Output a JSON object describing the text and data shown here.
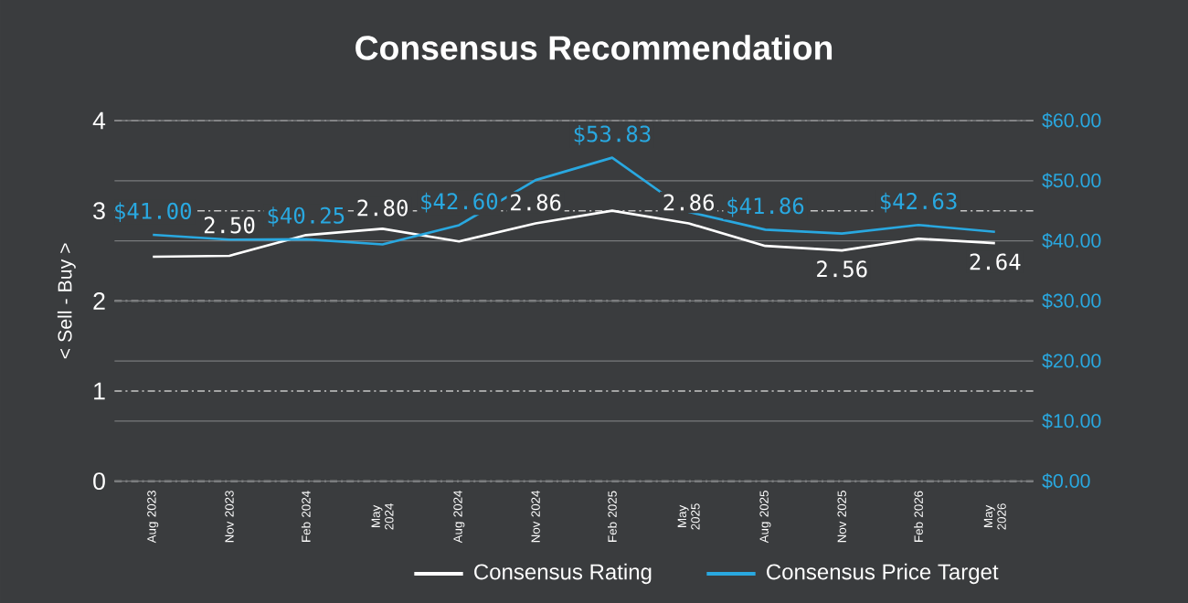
{
  "chart_data": {
    "type": "line",
    "title": "Consensus Recommendation",
    "ylabel": "< Sell - Buy >",
    "categories": [
      "Aug 2023",
      "Nov 2023",
      "Feb 2024",
      "May 2024",
      "Aug 2024",
      "Nov 2024",
      "Feb 2025",
      "May 2025",
      "Aug 2025",
      "Nov 2025",
      "Feb 2026",
      "May 2026"
    ],
    "series": [
      {
        "name": "Consensus Rating",
        "color": "#ffffff",
        "values": [
          2.49,
          2.5,
          2.73,
          2.8,
          2.66,
          2.86,
          3.0,
          2.86,
          2.61,
          2.56,
          2.69,
          2.64
        ],
        "value_labels": [
          null,
          "2.50",
          null,
          "2.80",
          null,
          "2.86",
          null,
          "2.86",
          null,
          "2.56",
          null,
          "2.64"
        ]
      },
      {
        "name": "Consensus Price Target",
        "color": "#29a8e0",
        "axis": "y2",
        "values": [
          41.0,
          40.2,
          40.25,
          39.4,
          42.6,
          50.1,
          53.83,
          44.8,
          41.86,
          41.2,
          42.63,
          41.5
        ],
        "value_labels": [
          "$41.00",
          null,
          "$40.25",
          null,
          "$42.60",
          null,
          "$53.83",
          null,
          "$41.86",
          null,
          "$42.63",
          null
        ]
      }
    ],
    "ylim": [
      0,
      4
    ],
    "yticks": [
      0,
      1,
      2,
      3,
      4
    ],
    "y2lim": [
      0,
      60
    ],
    "y2ticks": [
      {
        "value": 0,
        "label": "$0.00"
      },
      {
        "value": 10,
        "label": "$10.00"
      },
      {
        "value": 20,
        "label": "$20.00"
      },
      {
        "value": 30,
        "label": "$30.00"
      },
      {
        "value": 40,
        "label": "$40.00"
      },
      {
        "value": 50,
        "label": "$50.00"
      },
      {
        "value": 60,
        "label": "$60.00"
      }
    ],
    "grid": "y",
    "legend": "bottom"
  }
}
